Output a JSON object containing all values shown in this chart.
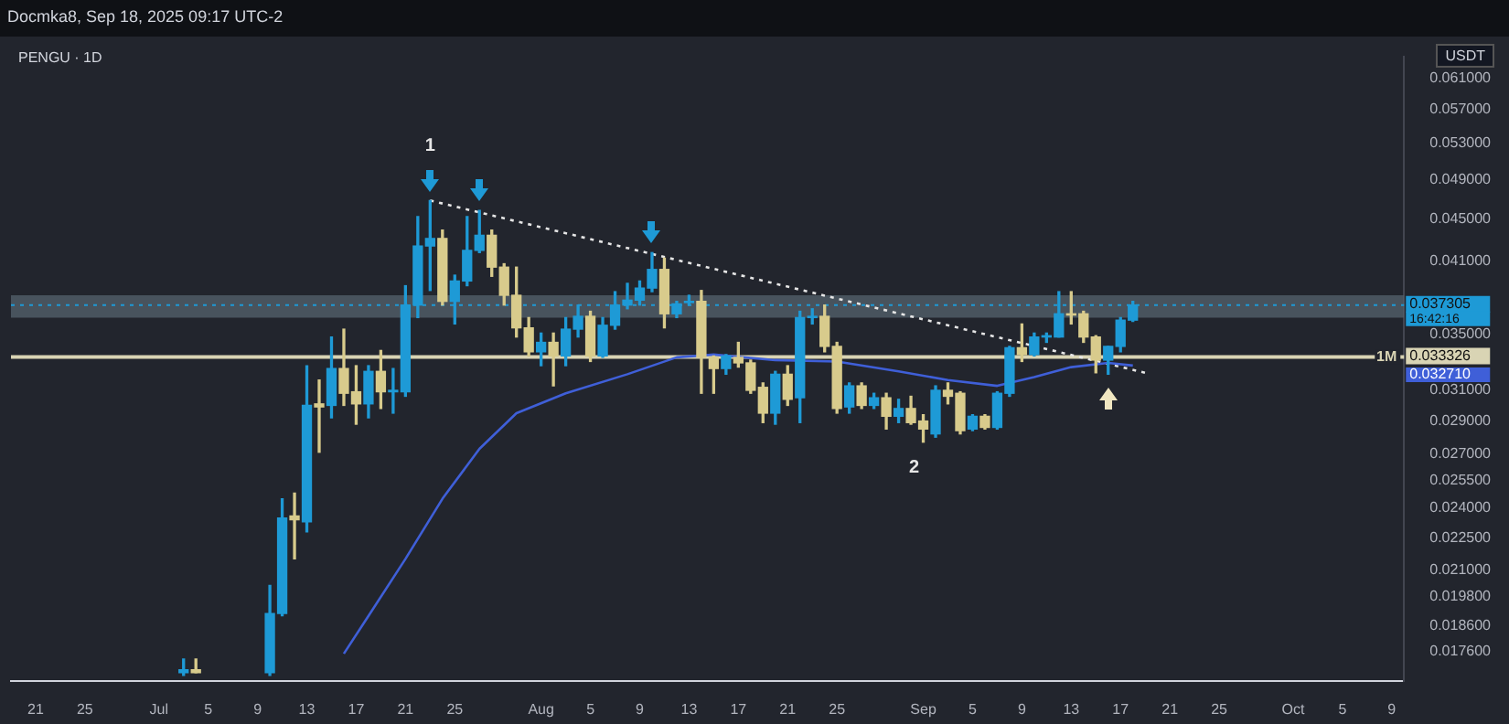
{
  "chart_data": {
    "type": "candlestick",
    "title": "PENGU · 1D",
    "subtitle": "Docmka8, Sep 18, 2025 09:17 UTC-2",
    "ylabel": "USDT",
    "annotations": [
      "1",
      "2",
      "16:42:16",
      "1M",
      "0.032710"
    ],
    "series": [
      {
        "x": [
          "2025-07-03",
          "2025-07-04",
          "2025-07-10",
          "2025-07-11",
          "2025-07-12",
          "2025-07-13",
          "2025-07-14",
          "2025-07-15",
          "2025-07-16",
          "2025-07-17",
          "2025-07-18",
          "2025-07-19",
          "2025-07-20",
          "2025-07-21",
          "2025-07-22",
          "2025-07-23",
          "2025-07-24",
          "2025-07-25",
          "2025-07-26",
          "2025-07-27",
          "2025-07-28",
          "2025-07-29",
          "2025-07-30",
          "2025-07-31",
          "2025-08-01",
          "2025-08-02",
          "2025-08-03",
          "2025-08-04",
          "2025-08-05",
          "2025-08-06",
          "2025-08-07",
          "2025-08-08",
          "2025-08-09",
          "2025-08-10",
          "2025-08-11",
          "2025-08-12",
          "2025-08-13",
          "2025-08-14",
          "2025-08-15",
          "2025-08-16",
          "2025-08-17",
          "2025-08-18",
          "2025-08-19",
          "2025-08-20",
          "2025-08-21",
          "2025-08-22",
          "2025-08-23",
          "2025-08-24",
          "2025-08-25",
          "2025-08-26",
          "2025-08-27",
          "2025-08-28",
          "2025-08-29",
          "2025-08-30",
          "2025-08-31",
          "2025-09-01",
          "2025-09-02",
          "2025-09-03",
          "2025-09-04",
          "2025-09-05",
          "2025-09-06",
          "2025-09-07",
          "2025-09-08",
          "2025-09-09",
          "2025-09-10",
          "2025-09-11",
          "2025-09-12",
          "2025-09-13",
          "2025-09-14",
          "2025-09-15",
          "2025-09-16",
          "2025-09-17",
          "2025-09-18"
        ],
        "ohlc": [
          [
            0.0168,
            0.0173,
            0.0167,
            0.0169
          ],
          [
            0.0169,
            0.0173,
            0.0168,
            0.0168
          ],
          [
            0.0168,
            0.0203,
            0.0167,
            0.0191
          ],
          [
            0.0191,
            0.0245,
            0.019,
            0.0235
          ],
          [
            0.0236,
            0.0248,
            0.0215,
            0.0234
          ],
          [
            0.0233,
            0.0327,
            0.0228,
            0.03
          ],
          [
            0.0301,
            0.0317,
            0.0271,
            0.0299
          ],
          [
            0.03,
            0.0348,
            0.0292,
            0.0325
          ],
          [
            0.0325,
            0.0354,
            0.03,
            0.0308
          ],
          [
            0.0309,
            0.0327,
            0.0288,
            0.0301
          ],
          [
            0.0301,
            0.0327,
            0.0292,
            0.0323
          ],
          [
            0.0323,
            0.0338,
            0.0298,
            0.0309
          ],
          [
            0.0309,
            0.0325,
            0.0295,
            0.031
          ],
          [
            0.0309,
            0.0389,
            0.0306,
            0.0373
          ],
          [
            0.0373,
            0.0452,
            0.0363,
            0.0424
          ],
          [
            0.0424,
            0.0468,
            0.0385,
            0.0431
          ],
          [
            0.0431,
            0.0439,
            0.0373,
            0.0376
          ],
          [
            0.0376,
            0.0398,
            0.0358,
            0.0393
          ],
          [
            0.0393,
            0.0452,
            0.0389,
            0.042
          ],
          [
            0.042,
            0.0458,
            0.0418,
            0.0434
          ],
          [
            0.0434,
            0.0439,
            0.0397,
            0.0405
          ],
          [
            0.0405,
            0.0408,
            0.0373,
            0.0381
          ],
          [
            0.0381,
            0.0405,
            0.0348,
            0.0355
          ],
          [
            0.0355,
            0.0363,
            0.0334,
            0.0337
          ],
          [
            0.0337,
            0.0351,
            0.0327,
            0.0344
          ],
          [
            0.0344,
            0.0351,
            0.0313,
            0.0334
          ],
          [
            0.0334,
            0.0363,
            0.0327,
            0.0354
          ],
          [
            0.0354,
            0.0373,
            0.0348,
            0.0364
          ],
          [
            0.0364,
            0.0368,
            0.033,
            0.0334
          ],
          [
            0.0334,
            0.0363,
            0.0333,
            0.0357
          ],
          [
            0.0357,
            0.0384,
            0.0354,
            0.0373
          ],
          [
            0.0373,
            0.0391,
            0.037,
            0.0377
          ],
          [
            0.0377,
            0.0393,
            0.0373,
            0.0387
          ],
          [
            0.0387,
            0.0418,
            0.0384,
            0.0403
          ],
          [
            0.0403,
            0.0413,
            0.0355,
            0.0366
          ],
          [
            0.0366,
            0.0376,
            0.0363,
            0.0374
          ],
          [
            0.0375,
            0.0381,
            0.0373,
            0.0376
          ],
          [
            0.0376,
            0.0385,
            0.0308,
            0.0333
          ],
          [
            0.0333,
            0.0334,
            0.0308,
            0.0325
          ],
          [
            0.0325,
            0.0335,
            0.0321,
            0.0334
          ],
          [
            0.0333,
            0.0344,
            0.0326,
            0.0329
          ],
          [
            0.0329,
            0.0331,
            0.0308,
            0.031
          ],
          [
            0.0312,
            0.0315,
            0.0289,
            0.0295
          ],
          [
            0.0295,
            0.0323,
            0.0288,
            0.0321
          ],
          [
            0.0321,
            0.0327,
            0.03,
            0.0304
          ],
          [
            0.0305,
            0.0368,
            0.0289,
            0.0363
          ],
          [
            0.0363,
            0.037,
            0.0358,
            0.0364
          ],
          [
            0.0364,
            0.0373,
            0.0337,
            0.0341
          ],
          [
            0.0341,
            0.0344,
            0.0295,
            0.0298
          ],
          [
            0.0299,
            0.0315,
            0.0295,
            0.0313
          ],
          [
            0.0313,
            0.0315,
            0.0298,
            0.03
          ],
          [
            0.03,
            0.0308,
            0.0298,
            0.0305
          ],
          [
            0.0305,
            0.0308,
            0.0285,
            0.0293
          ],
          [
            0.0293,
            0.0304,
            0.0289,
            0.0298
          ],
          [
            0.0298,
            0.0306,
            0.0288,
            0.0289
          ],
          [
            0.029,
            0.0294,
            0.0277,
            0.0285
          ],
          [
            0.0282,
            0.0313,
            0.028,
            0.031
          ],
          [
            0.031,
            0.0315,
            0.0301,
            0.0306
          ],
          [
            0.0308,
            0.0309,
            0.0282,
            0.0284
          ],
          [
            0.0285,
            0.0294,
            0.0284,
            0.0293
          ],
          [
            0.0293,
            0.0294,
            0.0285,
            0.0286
          ],
          [
            0.0286,
            0.0309,
            0.0285,
            0.0308
          ],
          [
            0.0308,
            0.0341,
            0.0306,
            0.034
          ],
          [
            0.034,
            0.0358,
            0.033,
            0.0335
          ],
          [
            0.0335,
            0.0351,
            0.0334,
            0.0348
          ],
          [
            0.0348,
            0.0351,
            0.0344,
            0.0349
          ],
          [
            0.0348,
            0.0384,
            0.0348,
            0.0366
          ],
          [
            0.0366,
            0.0384,
            0.0358,
            0.0365
          ],
          [
            0.0366,
            0.0368,
            0.0344,
            0.0348
          ],
          [
            0.0348,
            0.0349,
            0.0322,
            0.0331
          ],
          [
            0.0331,
            0.0341,
            0.0321,
            0.0341
          ],
          [
            0.0341,
            0.0363,
            0.0337,
            0.0361
          ],
          [
            0.0361,
            0.0376,
            0.036,
            0.037305
          ]
        ],
        "colors": [
          "#1e9ad6",
          "#d8cb8c",
          "#1e9ad6",
          "#1e9ad6",
          "#d8cb8c",
          "#1e9ad6",
          "#d8cb8c",
          "#1e9ad6",
          "#d8cb8c",
          "#d8cb8c",
          "#1e9ad6",
          "#d8cb8c",
          "#1e9ad6",
          "#1e9ad6",
          "#1e9ad6",
          "#1e9ad6",
          "#d8cb8c",
          "#1e9ad6",
          "#1e9ad6",
          "#1e9ad6",
          "#d8cb8c",
          "#d8cb8c",
          "#d8cb8c",
          "#d8cb8c",
          "#1e9ad6",
          "#d8cb8c",
          "#1e9ad6",
          "#1e9ad6",
          "#d8cb8c",
          "#1e9ad6",
          "#1e9ad6",
          "#1e9ad6",
          "#1e9ad6",
          "#1e9ad6",
          "#d8cb8c",
          "#1e9ad6",
          "#1e9ad6",
          "#d8cb8c",
          "#d8cb8c",
          "#1e9ad6",
          "#d8cb8c",
          "#d8cb8c",
          "#d8cb8c",
          "#1e9ad6",
          "#d8cb8c",
          "#1e9ad6",
          "#1e9ad6",
          "#d8cb8c",
          "#d8cb8c",
          "#1e9ad6",
          "#d8cb8c",
          "#1e9ad6",
          "#d8cb8c",
          "#1e9ad6",
          "#d8cb8c",
          "#d8cb8c",
          "#1e9ad6",
          "#d8cb8c",
          "#d8cb8c",
          "#1e9ad6",
          "#d8cb8c",
          "#1e9ad6",
          "#1e9ad6",
          "#d8cb8c",
          "#1e9ad6",
          "#1e9ad6",
          "#1e9ad6",
          "#d8cb8c",
          "#d8cb8c",
          "#d8cb8c",
          "#1e9ad6",
          "#1e9ad6",
          "#1e9ad6"
        ]
      },
      {
        "type": "line",
        "color": "#3f5fd8",
        "x": [
          "2025-07-16",
          "2025-07-18",
          "2025-07-21",
          "2025-07-24",
          "2025-07-27",
          "2025-07-30",
          "2025-08-03",
          "2025-08-08",
          "2025-08-12",
          "2025-08-15",
          "2025-08-20",
          "2025-08-25",
          "2025-08-30",
          "2025-09-03",
          "2025-09-07",
          "2025-09-10",
          "2025-09-13",
          "2025-09-16",
          "2025-09-18"
        ],
        "values": [
          0.0175,
          0.019,
          0.0215,
          0.0245,
          0.0273,
          0.0295,
          0.0308,
          0.0321,
          0.0333,
          0.0335,
          0.0331,
          0.033,
          0.0323,
          0.0317,
          0.0313,
          0.0319,
          0.0326,
          0.0329,
          0.03271
        ]
      },
      {
        "type": "line",
        "color": "#e6e6e6",
        "line_style": "dotted",
        "x": [
          "2025-07-23",
          "2025-09-19"
        ],
        "values": [
          0.0468,
          0.0322
        ]
      }
    ],
    "ref_lines": [
      {
        "axis": "y",
        "value": 0.037305,
        "label": "0.037305",
        "color": "#1e9ad6",
        "line_style": "dotted"
      },
      {
        "axis": "y",
        "value": 0.033326,
        "label": "0.033326",
        "color": "#d9d4b4"
      }
    ],
    "bands": [
      {
        "axis": "y",
        "from": 0.0363,
        "to": 0.0381,
        "color": "#56636e"
      }
    ],
    "xlim": [
      "2025-06-19",
      "2025-10-10"
    ],
    "xticks": [
      {
        "value": "2025-06-21",
        "label": "21"
      },
      {
        "value": "2025-06-25",
        "label": "25"
      },
      {
        "value": "2025-07-01",
        "label": "Jul"
      },
      {
        "value": "2025-07-05",
        "label": "5"
      },
      {
        "value": "2025-07-09",
        "label": "9"
      },
      {
        "value": "2025-07-13",
        "label": "13"
      },
      {
        "value": "2025-07-17",
        "label": "17"
      },
      {
        "value": "2025-07-21",
        "label": "21"
      },
      {
        "value": "2025-07-25",
        "label": "25"
      },
      {
        "value": "2025-08-01",
        "label": "Aug"
      },
      {
        "value": "2025-08-05",
        "label": "5"
      },
      {
        "value": "2025-08-09",
        "label": "9"
      },
      {
        "value": "2025-08-13",
        "label": "13"
      },
      {
        "value": "2025-08-17",
        "label": "17"
      },
      {
        "value": "2025-08-21",
        "label": "21"
      },
      {
        "value": "2025-08-25",
        "label": "25"
      },
      {
        "value": "2025-09-01",
        "label": "Sep"
      },
      {
        "value": "2025-09-05",
        "label": "5"
      },
      {
        "value": "2025-09-09",
        "label": "9"
      },
      {
        "value": "2025-09-13",
        "label": "13"
      },
      {
        "value": "2025-09-17",
        "label": "17"
      },
      {
        "value": "2025-09-21",
        "label": "21"
      },
      {
        "value": "2025-09-25",
        "label": "25"
      },
      {
        "value": "2025-10-01",
        "label": "Oct"
      },
      {
        "value": "2025-10-05",
        "label": "5"
      },
      {
        "value": "2025-10-09",
        "label": "9"
      }
    ],
    "log": true,
    "ylim": [
      0.0165,
      0.064
    ],
    "yticks": [
      {
        "value": 0.0176,
        "label": "0.017600"
      },
      {
        "value": 0.0186,
        "label": "0.018600"
      },
      {
        "value": 0.0198,
        "label": "0.019800"
      },
      {
        "value": 0.021,
        "label": "0.021000"
      },
      {
        "value": 0.0225,
        "label": "0.022500"
      },
      {
        "value": 0.024,
        "label": "0.024000"
      },
      {
        "value": 0.0255,
        "label": "0.025500"
      },
      {
        "value": 0.027,
        "label": "0.027000"
      },
      {
        "value": 0.029,
        "label": "0.029000"
      },
      {
        "value": 0.031,
        "label": "0.031000"
      },
      {
        "value": 0.035,
        "label": "0.035000"
      },
      {
        "value": 0.041,
        "label": "0.041000"
      },
      {
        "value": 0.045,
        "label": "0.045000"
      },
      {
        "value": 0.049,
        "label": "0.049000"
      },
      {
        "value": 0.053,
        "label": "0.053000"
      },
      {
        "value": 0.057,
        "label": "0.057000"
      },
      {
        "value": 0.061,
        "label": "0.061000"
      }
    ],
    "grid": false,
    "legend": false
  }
}
